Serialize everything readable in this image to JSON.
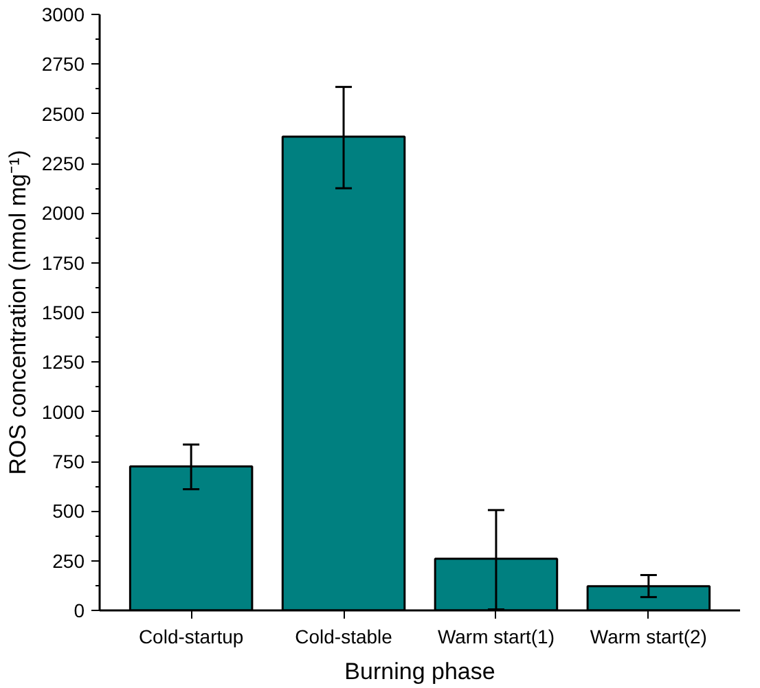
{
  "chart_data": {
    "type": "bar",
    "xlabel": "Burning phase",
    "ylabel": "ROS concentration (nmol mg⁻¹)",
    "categories": [
      "Cold-startup",
      "Cold-stable",
      "Warm start(1)",
      "Warm start(2)"
    ],
    "values": [
      725,
      2385,
      260,
      122
    ],
    "errors": [
      [
        610,
        835
      ],
      [
        2125,
        2635
      ],
      [
        5,
        505
      ],
      [
        67,
        178
      ]
    ],
    "color": "#008080",
    "ylim": [
      0,
      3000
    ],
    "yticks": [
      0,
      250,
      500,
      750,
      1000,
      1250,
      1500,
      1750,
      2000,
      2250,
      2500,
      2750,
      3000
    ],
    "grid": false
  }
}
